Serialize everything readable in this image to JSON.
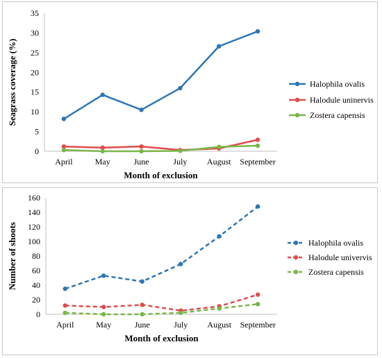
{
  "chart_data": [
    {
      "type": "line",
      "xlabel": "Month of exclusion",
      "ylabel": "Seagrass coverage (%)",
      "categories": [
        "April",
        "May",
        "June",
        "July",
        "August",
        "September"
      ],
      "ylim": [
        0,
        35
      ],
      "yticks": [
        0,
        5,
        10,
        15,
        20,
        25,
        30,
        35
      ],
      "grid": false,
      "legend": "right",
      "line_style": "solid",
      "series": [
        {
          "name": "Halophila ovalis",
          "color": "#2e75b6",
          "values": [
            8.2,
            14.3,
            10.5,
            16.0,
            26.6,
            30.4
          ]
        },
        {
          "name": "Halodule uninervis",
          "color": "#e04b4b",
          "values": [
            1.2,
            0.9,
            1.2,
            0.3,
            0.7,
            2.9
          ]
        },
        {
          "name": "Zostera capensis",
          "color": "#7ab648",
          "values": [
            0.3,
            0.0,
            0.0,
            0.1,
            1.1,
            1.4
          ]
        }
      ]
    },
    {
      "type": "line",
      "xlabel": "Month of exclusion",
      "ylabel": "Number of shoots",
      "categories": [
        "April",
        "May",
        "June",
        "July",
        "August",
        "September"
      ],
      "ylim": [
        0,
        160
      ],
      "yticks": [
        0,
        20,
        40,
        60,
        80,
        100,
        120,
        140,
        160
      ],
      "grid": false,
      "legend": "right",
      "line_style": "dashed",
      "series": [
        {
          "name": "Halophila ovalis",
          "color": "#2e75b6",
          "values": [
            35,
            53,
            45,
            69,
            107,
            148
          ]
        },
        {
          "name": "Halodule univervis",
          "color": "#e04b4b",
          "values": [
            12,
            10,
            13,
            5,
            11,
            27
          ]
        },
        {
          "name": "Zostera capensis",
          "color": "#7ab648",
          "values": [
            2,
            0,
            0,
            2,
            8,
            14
          ]
        }
      ]
    }
  ]
}
